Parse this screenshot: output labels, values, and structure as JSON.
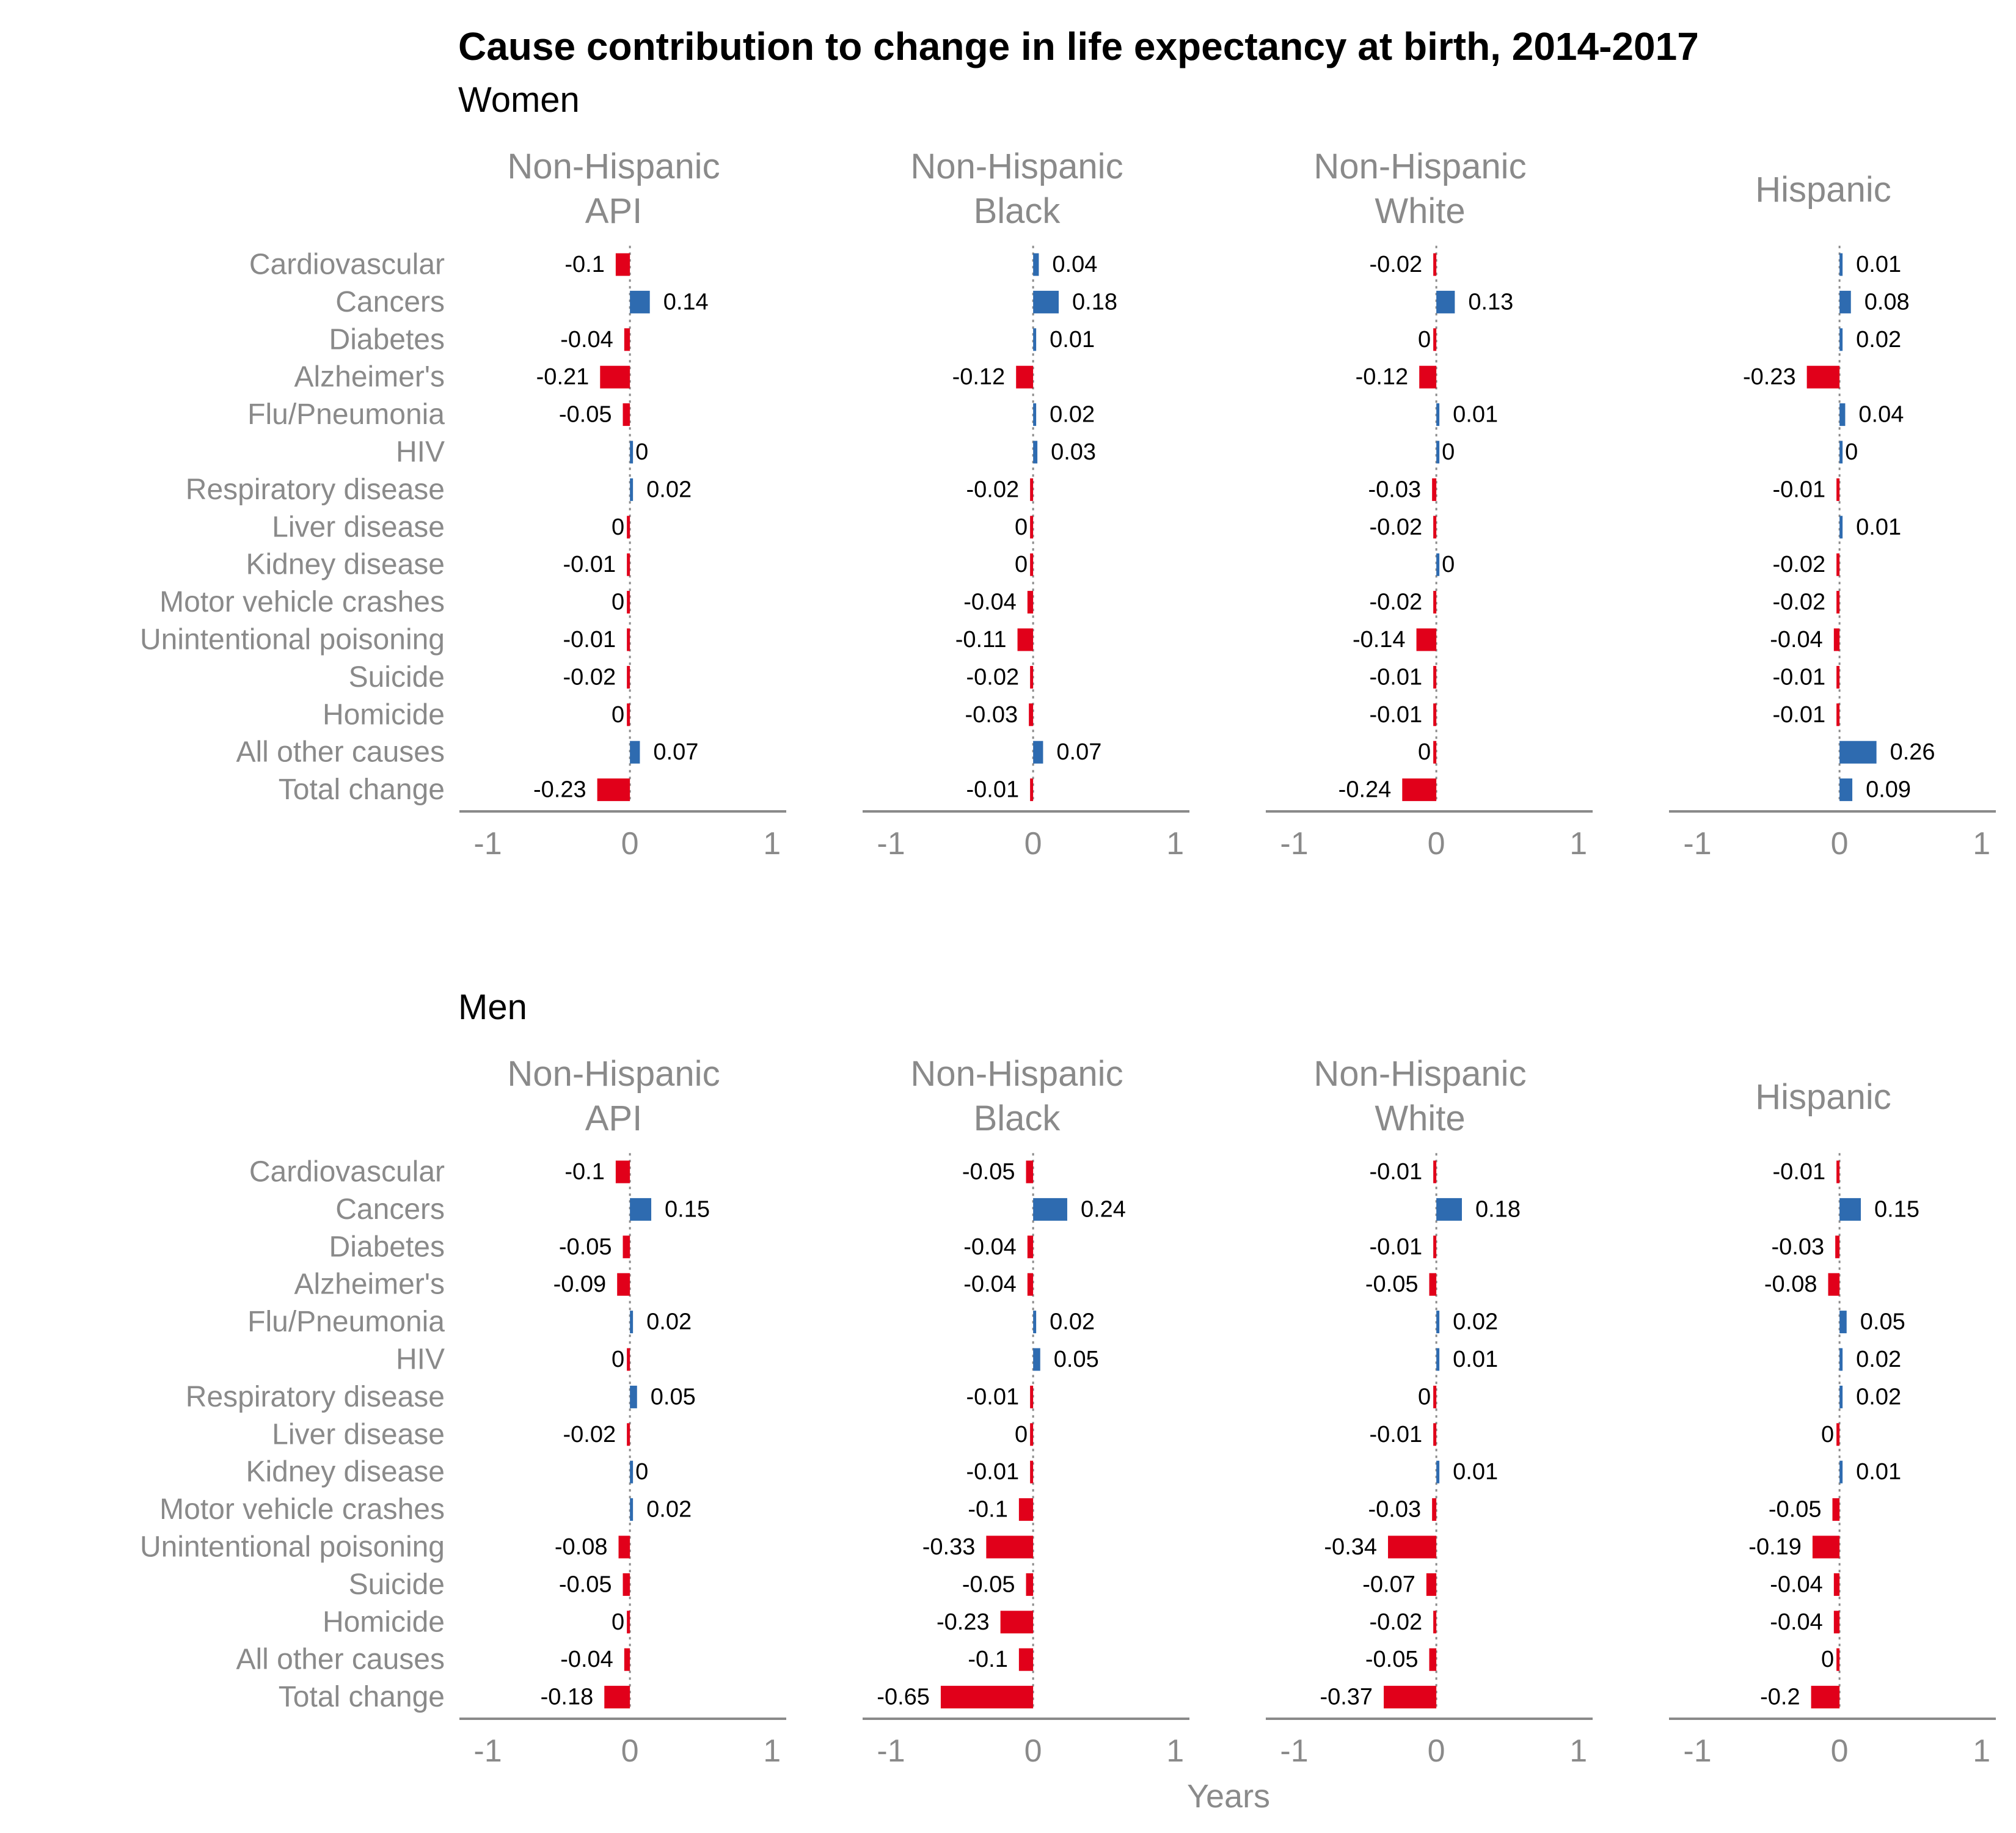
{
  "chart_data": {
    "type": "bar",
    "orientation": "horizontal",
    "title": "Cause contribution to change in life expectancy at birth, 2014-2017",
    "xlabel": "Years",
    "xlim": [
      -1.2,
      1.1
    ],
    "xticks": [
      "-1",
      "0",
      "1"
    ],
    "grid": false,
    "colors": {
      "positive": "#2e6bb0",
      "negative": "#e1001a",
      "zero_line": "#8a8a8a",
      "axis": "#8a8a8a"
    },
    "categories": [
      "Cardiovascular",
      "Cancers",
      "Diabetes",
      "Alzheimer's",
      "Flu/Pneumonia",
      "HIV",
      "Respiratory disease",
      "Liver disease",
      "Kidney disease",
      "Motor vehicle crashes",
      "Unintentional poisoning",
      "Suicide",
      "Homicide",
      "All other causes",
      "Total change"
    ],
    "groups": [
      {
        "name": "Women",
        "facets": [
          {
            "title": [
              "Non-Hispanic",
              "API"
            ],
            "values": [
              -0.1,
              0.14,
              -0.04,
              -0.21,
              -0.05,
              0,
              0.02,
              0,
              -0.01,
              0,
              -0.01,
              -0.02,
              0,
              0.07,
              -0.23
            ],
            "labels": [
              "-0.1",
              "0.14",
              "-0.04",
              "-0.21",
              "-0.05",
              "0",
              "0.02",
              "0",
              "-0.01",
              "0",
              "-0.01",
              "-0.02",
              "0",
              "0.07",
              "-0.23"
            ]
          },
          {
            "title": [
              "Non-Hispanic",
              "Black"
            ],
            "values": [
              0.04,
              0.18,
              0.01,
              -0.12,
              0.02,
              0.03,
              -0.02,
              0,
              0,
              -0.04,
              -0.11,
              -0.02,
              -0.03,
              0.07,
              -0.01
            ],
            "labels": [
              "0.04",
              "0.18",
              "0.01",
              "-0.12",
              "0.02",
              "0.03",
              "-0.02",
              "0",
              "0",
              "-0.04",
              "-0.11",
              "-0.02",
              "-0.03",
              "0.07",
              "-0.01"
            ]
          },
          {
            "title": [
              "Non-Hispanic",
              "White"
            ],
            "values": [
              -0.02,
              0.13,
              0,
              -0.12,
              0.01,
              0,
              -0.03,
              -0.02,
              0,
              -0.02,
              -0.14,
              -0.01,
              -0.01,
              0,
              -0.24
            ],
            "labels": [
              "-0.02",
              "0.13",
              "0",
              "-0.12",
              "0.01",
              "0",
              "-0.03",
              "-0.02",
              "0",
              "-0.02",
              "-0.14",
              "-0.01",
              "-0.01",
              "0",
              "-0.24"
            ]
          },
          {
            "title": [
              "Hispanic"
            ],
            "values": [
              0.01,
              0.08,
              0.02,
              -0.23,
              0.04,
              0,
              -0.01,
              0.01,
              -0.02,
              -0.02,
              -0.04,
              -0.01,
              -0.01,
              0.26,
              0.09
            ],
            "labels": [
              "0.01",
              "0.08",
              "0.02",
              "-0.23",
              "0.04",
              "0",
              "-0.01",
              "0.01",
              "-0.02",
              "-0.02",
              "-0.04",
              "-0.01",
              "-0.01",
              "0.26",
              "0.09"
            ]
          }
        ]
      },
      {
        "name": "Men",
        "facets": [
          {
            "title": [
              "Non-Hispanic",
              "API"
            ],
            "values": [
              -0.1,
              0.15,
              -0.05,
              -0.09,
              0.02,
              0,
              0.05,
              -0.02,
              0,
              0.02,
              -0.08,
              -0.05,
              0,
              -0.04,
              -0.18
            ],
            "labels": [
              "-0.1",
              "0.15",
              "-0.05",
              "-0.09",
              "0.02",
              "0",
              "0.05",
              "-0.02",
              "0",
              "0.02",
              "-0.08",
              "-0.05",
              "0",
              "-0.04",
              "-0.18"
            ]
          },
          {
            "title": [
              "Non-Hispanic",
              "Black"
            ],
            "values": [
              -0.05,
              0.24,
              -0.04,
              -0.04,
              0.02,
              0.05,
              -0.01,
              0,
              -0.01,
              -0.1,
              -0.33,
              -0.05,
              -0.23,
              -0.1,
              -0.65
            ],
            "labels": [
              "-0.05",
              "0.24",
              "-0.04",
              "-0.04",
              "0.02",
              "0.05",
              "-0.01",
              "0",
              "-0.01",
              "-0.1",
              "-0.33",
              "-0.05",
              "-0.23",
              "-0.1",
              "-0.65"
            ]
          },
          {
            "title": [
              "Non-Hispanic",
              "White"
            ],
            "values": [
              -0.01,
              0.18,
              -0.01,
              -0.05,
              0.02,
              0.01,
              0,
              -0.01,
              0.01,
              -0.03,
              -0.34,
              -0.07,
              -0.02,
              -0.05,
              -0.37
            ],
            "labels": [
              "-0.01",
              "0.18",
              "-0.01",
              "-0.05",
              "0.02",
              "0.01",
              "0",
              "-0.01",
              "0.01",
              "-0.03",
              "-0.34",
              "-0.07",
              "-0.02",
              "-0.05",
              "-0.37"
            ]
          },
          {
            "title": [
              "Hispanic"
            ],
            "values": [
              -0.01,
              0.15,
              -0.03,
              -0.08,
              0.05,
              0.02,
              0.02,
              0,
              0.01,
              -0.05,
              -0.19,
              -0.04,
              -0.04,
              0,
              -0.2
            ],
            "labels": [
              "-0.01",
              "0.15",
              "-0.03",
              "-0.08",
              "0.05",
              "0.02",
              "0.02",
              "0",
              "0.01",
              "-0.05",
              "-0.19",
              "-0.04",
              "-0.04",
              "0",
              "-0.2"
            ]
          }
        ]
      }
    ]
  }
}
